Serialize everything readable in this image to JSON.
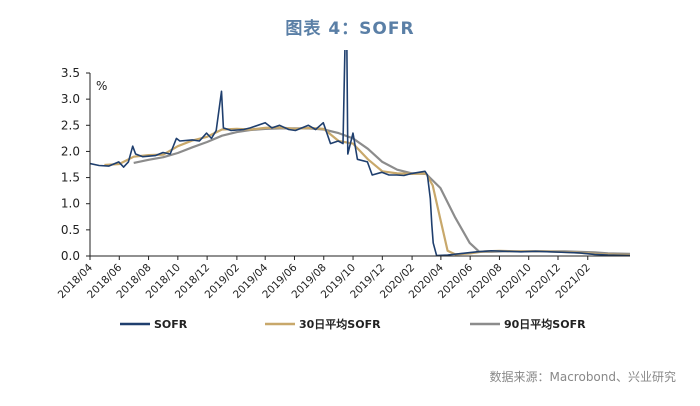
{
  "title": "图表 4：SOFR",
  "source": "数据来源：Macrobond、兴业研究",
  "chart_data": {
    "type": "line",
    "ylabel": "%",
    "ylim": [
      0,
      3.5
    ],
    "yticks": [
      "3.5",
      "3.0",
      "2.5",
      "2.0",
      "1.5",
      "1.0",
      "0.5",
      "0.0"
    ],
    "xlim": [
      "2018-04-01",
      "2021-04-30"
    ],
    "xticks": [
      "2018/04",
      "2018/06",
      "2018/08",
      "2018/10",
      "2018/12",
      "2019/02",
      "2019/04",
      "2019/06",
      "2019/08",
      "2019/10",
      "2019/12",
      "2020/02",
      "2020/04",
      "2020/06",
      "2020/08",
      "2020/10",
      "2020/12",
      "2021/02"
    ],
    "series": [
      {
        "name": "SOFR",
        "color": "#1f3f6e",
        "points": [
          [
            "2018-04-01",
            1.77
          ],
          [
            "2018-04-20",
            1.73
          ],
          [
            "2018-05-10",
            1.72
          ],
          [
            "2018-05-31",
            1.8
          ],
          [
            "2018-06-10",
            1.7
          ],
          [
            "2018-06-20",
            1.8
          ],
          [
            "2018-06-29",
            2.1
          ],
          [
            "2018-07-05",
            1.95
          ],
          [
            "2018-07-20",
            1.9
          ],
          [
            "2018-08-15",
            1.92
          ],
          [
            "2018-08-31",
            1.98
          ],
          [
            "2018-09-15",
            1.95
          ],
          [
            "2018-09-28",
            2.25
          ],
          [
            "2018-10-05",
            2.2
          ],
          [
            "2018-10-31",
            2.22
          ],
          [
            "2018-11-15",
            2.2
          ],
          [
            "2018-11-30",
            2.35
          ],
          [
            "2018-12-10",
            2.25
          ],
          [
            "2018-12-20",
            2.4
          ],
          [
            "2018-12-31",
            3.15
          ],
          [
            "2019-01-04",
            2.45
          ],
          [
            "2019-01-20",
            2.4
          ],
          [
            "2019-02-15",
            2.42
          ],
          [
            "2019-03-01",
            2.45
          ],
          [
            "2019-04-01",
            2.55
          ],
          [
            "2019-04-15",
            2.45
          ],
          [
            "2019-05-01",
            2.5
          ],
          [
            "2019-05-20",
            2.42
          ],
          [
            "2019-06-03",
            2.4
          ],
          [
            "2019-06-30",
            2.5
          ],
          [
            "2019-07-15",
            2.42
          ],
          [
            "2019-07-31",
            2.55
          ],
          [
            "2019-08-15",
            2.15
          ],
          [
            "2019-08-31",
            2.2
          ],
          [
            "2019-09-10",
            2.15
          ],
          [
            "2019-09-17",
            5.25
          ],
          [
            "2019-09-20",
            1.95
          ],
          [
            "2019-10-01",
            2.35
          ],
          [
            "2019-10-10",
            1.85
          ],
          [
            "2019-10-31",
            1.8
          ],
          [
            "2019-11-10",
            1.55
          ],
          [
            "2019-11-30",
            1.6
          ],
          [
            "2019-12-15",
            1.55
          ],
          [
            "2019-12-31",
            1.55
          ],
          [
            "2020-01-15",
            1.54
          ],
          [
            "2020-02-01",
            1.58
          ],
          [
            "2020-02-28",
            1.62
          ],
          [
            "2020-03-04",
            1.55
          ],
          [
            "2020-03-10",
            1.1
          ],
          [
            "2020-03-13",
            0.6
          ],
          [
            "2020-03-16",
            0.25
          ],
          [
            "2020-03-23",
            0.01
          ],
          [
            "2020-04-15",
            0.02
          ],
          [
            "2020-05-15",
            0.05
          ],
          [
            "2020-06-15",
            0.08
          ],
          [
            "2020-07-15",
            0.1
          ],
          [
            "2020-08-15",
            0.09
          ],
          [
            "2020-09-15",
            0.08
          ],
          [
            "2020-10-15",
            0.09
          ],
          [
            "2020-11-15",
            0.08
          ],
          [
            "2020-12-15",
            0.07
          ],
          [
            "2021-01-15",
            0.06
          ],
          [
            "2021-02-15",
            0.03
          ],
          [
            "2021-03-15",
            0.02
          ],
          [
            "2021-04-30",
            0.01
          ]
        ]
      },
      {
        "name": "30日平均SOFR",
        "color": "#c8a86b",
        "points": [
          [
            "2018-05-01",
            1.74
          ],
          [
            "2018-06-01",
            1.76
          ],
          [
            "2018-07-01",
            1.9
          ],
          [
            "2018-08-01",
            1.93
          ],
          [
            "2018-09-01",
            1.94
          ],
          [
            "2018-10-01",
            2.1
          ],
          [
            "2018-11-01",
            2.21
          ],
          [
            "2018-12-01",
            2.28
          ],
          [
            "2019-01-01",
            2.42
          ],
          [
            "2019-02-01",
            2.43
          ],
          [
            "2019-03-01",
            2.42
          ],
          [
            "2019-04-01",
            2.45
          ],
          [
            "2019-05-01",
            2.46
          ],
          [
            "2019-06-01",
            2.43
          ],
          [
            "2019-07-01",
            2.45
          ],
          [
            "2019-08-01",
            2.43
          ],
          [
            "2019-09-01",
            2.2
          ],
          [
            "2019-10-01",
            2.15
          ],
          [
            "2019-11-01",
            1.85
          ],
          [
            "2019-12-01",
            1.62
          ],
          [
            "2020-01-01",
            1.58
          ],
          [
            "2020-02-01",
            1.57
          ],
          [
            "2020-03-01",
            1.58
          ],
          [
            "2020-03-15",
            1.35
          ],
          [
            "2020-03-31",
            0.7
          ],
          [
            "2020-04-15",
            0.1
          ],
          [
            "2020-05-01",
            0.03
          ],
          [
            "2020-06-01",
            0.05
          ],
          [
            "2020-07-01",
            0.09
          ],
          [
            "2020-08-01",
            0.1
          ],
          [
            "2020-09-01",
            0.09
          ],
          [
            "2020-10-01",
            0.09
          ],
          [
            "2020-11-01",
            0.09
          ],
          [
            "2020-12-01",
            0.08
          ],
          [
            "2021-01-01",
            0.07
          ],
          [
            "2021-02-01",
            0.05
          ],
          [
            "2021-03-01",
            0.03
          ],
          [
            "2021-04-30",
            0.02
          ]
        ]
      },
      {
        "name": "90日平均SOFR",
        "color": "#8c8c8c",
        "points": [
          [
            "2018-07-01",
            1.78
          ],
          [
            "2018-08-01",
            1.84
          ],
          [
            "2018-09-01",
            1.89
          ],
          [
            "2018-10-01",
            1.97
          ],
          [
            "2018-11-01",
            2.08
          ],
          [
            "2018-12-01",
            2.18
          ],
          [
            "2019-01-01",
            2.3
          ],
          [
            "2019-02-01",
            2.37
          ],
          [
            "2019-03-01",
            2.41
          ],
          [
            "2019-04-01",
            2.43
          ],
          [
            "2019-05-01",
            2.44
          ],
          [
            "2019-06-01",
            2.44
          ],
          [
            "2019-07-01",
            2.44
          ],
          [
            "2019-08-01",
            2.42
          ],
          [
            "2019-09-01",
            2.35
          ],
          [
            "2019-10-01",
            2.25
          ],
          [
            "2019-11-01",
            2.05
          ],
          [
            "2019-12-01",
            1.8
          ],
          [
            "2020-01-01",
            1.65
          ],
          [
            "2020-02-01",
            1.58
          ],
          [
            "2020-03-01",
            1.57
          ],
          [
            "2020-03-31",
            1.3
          ],
          [
            "2020-04-30",
            0.75
          ],
          [
            "2020-05-31",
            0.25
          ],
          [
            "2020-06-20",
            0.08
          ],
          [
            "2020-07-15",
            0.08
          ],
          [
            "2020-08-15",
            0.09
          ],
          [
            "2020-09-15",
            0.09
          ],
          [
            "2020-10-15",
            0.09
          ],
          [
            "2020-11-15",
            0.09
          ],
          [
            "2020-12-15",
            0.09
          ],
          [
            "2021-01-15",
            0.08
          ],
          [
            "2021-02-15",
            0.07
          ],
          [
            "2021-03-15",
            0.05
          ],
          [
            "2021-04-30",
            0.04
          ]
        ]
      }
    ],
    "legend_position": "bottom"
  }
}
